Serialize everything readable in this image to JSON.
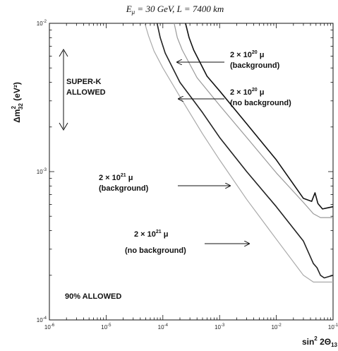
{
  "chart_data": {
    "type": "line",
    "title": "E_μ = 30 GeV, L = 7400 km",
    "title_parts": {
      "e": "E",
      "e_sub": "μ",
      "rest": " = 30 GeV, L = 7400 km"
    },
    "xlabel": "sin² 2Θ13",
    "xlabel_parts": {
      "base": "sin",
      "sup": "2",
      "mid": " 2Θ",
      "sub": "13"
    },
    "ylabel": "Δm²32 (eV²)",
    "ylabel_parts": {
      "base": "Δm",
      "sup": "2",
      "sub": "32",
      "rest": " (eV²)"
    },
    "xscale": "log",
    "yscale": "log",
    "xlim": [
      1e-06,
      0.1
    ],
    "ylim": [
      0.0001,
      0.01
    ],
    "x_ticks": [
      {
        "base": "10",
        "exp": "-6"
      },
      {
        "base": "10",
        "exp": "-5"
      },
      {
        "base": "10",
        "exp": "-4"
      },
      {
        "base": "10",
        "exp": "-3"
      },
      {
        "base": "10",
        "exp": "-2"
      },
      {
        "base": "10",
        "exp": "-1"
      }
    ],
    "y_ticks": [
      {
        "base": "10",
        "exp": "-4"
      },
      {
        "base": "10",
        "exp": "-3"
      },
      {
        "base": "10",
        "exp": "-2"
      }
    ],
    "series": [
      {
        "color": "#aaaaaa",
        "stroke_width": 1.2,
        "points": [
          [
            4.8e-05,
            0.01
          ],
          [
            5.6e-05,
            0.0082
          ],
          [
            7e-05,
            0.0065
          ],
          [
            0.0001,
            0.005
          ],
          [
            0.0002,
            0.0032
          ],
          [
            0.0005,
            0.0018
          ],
          [
            0.001,
            0.0012
          ],
          [
            0.003,
            0.00065
          ],
          [
            0.01,
            0.00035
          ],
          [
            0.03,
            0.0002
          ],
          [
            0.045,
            0.00018
          ],
          [
            0.1,
            0.00018
          ]
        ]
      },
      {
        "color": "#222222",
        "stroke_width": 1.6,
        "points": [
          [
            7.9e-05,
            0.01
          ],
          [
            9e-05,
            0.008
          ],
          [
            0.00011,
            0.0063
          ],
          [
            0.0002,
            0.004
          ],
          [
            0.0005,
            0.0025
          ],
          [
            0.001,
            0.0017
          ],
          [
            0.003,
            0.001
          ],
          [
            0.01,
            0.00058
          ],
          [
            0.03,
            0.00034
          ],
          [
            0.045,
            0.00024
          ],
          [
            0.052,
            0.000225
          ],
          [
            0.06,
            0.0002
          ],
          [
            0.07,
            0.000192
          ],
          [
            0.08,
            0.000195
          ],
          [
            0.1,
            0.0002
          ]
        ]
      },
      {
        "color": "#999999",
        "stroke_width": 1.2,
        "points": [
          [
            0.000158,
            0.01
          ],
          [
            0.00018,
            0.008
          ],
          [
            0.00022,
            0.0066
          ],
          [
            0.0004,
            0.0043
          ],
          [
            0.001,
            0.0028
          ],
          [
            0.003,
            0.0017
          ],
          [
            0.01,
            0.00098
          ],
          [
            0.03,
            0.00062
          ],
          [
            0.045,
            0.00052
          ],
          [
            0.06,
            0.00049
          ],
          [
            0.1,
            0.00049
          ]
        ]
      },
      {
        "color": "#111111",
        "stroke_width": 1.6,
        "points": [
          [
            0.000251,
            0.01
          ],
          [
            0.00029,
            0.008
          ],
          [
            0.00035,
            0.0066
          ],
          [
            0.0006,
            0.0044
          ],
          [
            0.001,
            0.0035
          ],
          [
            0.003,
            0.0021
          ],
          [
            0.01,
            0.0012
          ],
          [
            0.03,
            0.00066
          ],
          [
            0.042,
            0.00063
          ],
          [
            0.048,
            0.00072
          ],
          [
            0.054,
            0.00061
          ],
          [
            0.065,
            0.00056
          ],
          [
            0.08,
            0.00057
          ],
          [
            0.1,
            0.00058
          ]
        ]
      }
    ],
    "annotations": [
      {
        "id": "bg1e20",
        "line1": {
          "coef": "2 × 10",
          "exp": "20",
          "unit": " μ"
        },
        "line2": "(background)"
      },
      {
        "id": "nobg1e20",
        "line1": {
          "coef": "2 × 10",
          "exp": "20",
          "unit": " μ"
        },
        "line2": "(no background)"
      },
      {
        "id": "bg1e21",
        "line1": {
          "coef": "2 × 10",
          "exp": "21",
          "unit": " μ"
        },
        "line2": "(background)"
      },
      {
        "id": "nobg1e21",
        "line1": {
          "coef": "2 × 10",
          "exp": "21",
          "unit": " μ"
        },
        "line2": "(no background)"
      }
    ],
    "superk_label": [
      "SUPER-K",
      "ALLOWED"
    ],
    "allowed_label": "90% ALLOWED"
  }
}
